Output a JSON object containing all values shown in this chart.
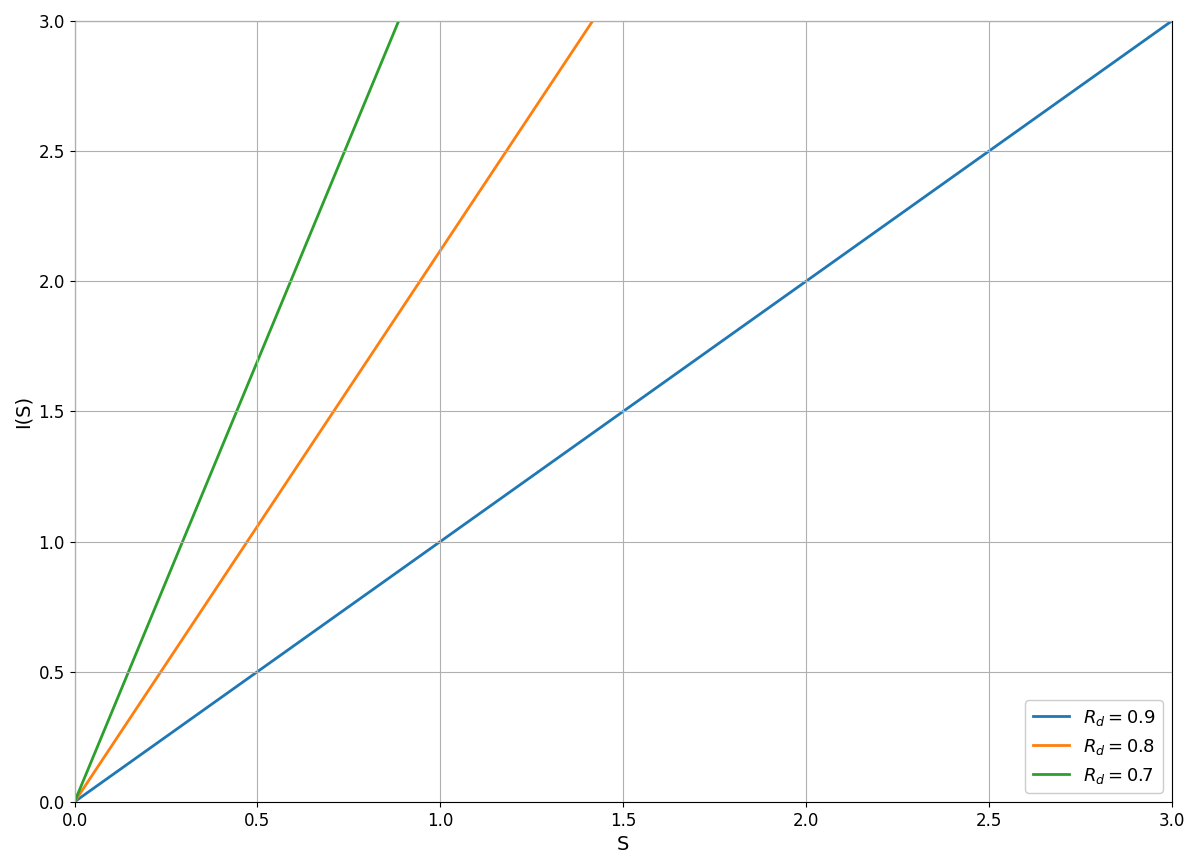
{
  "title": "",
  "xlabel": "S",
  "ylabel": "I(S)",
  "xlim": [
    0,
    3
  ],
  "ylim": [
    0,
    3
  ],
  "xticks": [
    0.0,
    0.5,
    1.0,
    1.5,
    2.0,
    2.5,
    3.0
  ],
  "yticks": [
    0.0,
    0.5,
    1.0,
    1.5,
    2.0,
    2.5,
    3.0
  ],
  "series": [
    {
      "r_d": 0.9,
      "label": "$R_d = 0.9$",
      "color": "#1f77b4"
    },
    {
      "r_d": 0.8,
      "label": "$R_d = 0.8$",
      "color": "#ff7f0e"
    },
    {
      "r_d": 0.7,
      "label": "$R_d = 0.7$",
      "color": "#2ca02c"
    }
  ],
  "legend_loc": "lower right",
  "grid": true,
  "figsize": [
    11.99,
    8.68
  ],
  "dpi": 100,
  "xlabel_fontsize": 14,
  "ylabel_fontsize": 14,
  "tick_fontsize": 12,
  "legend_fontsize": 13,
  "linewidth": 2.0,
  "grid_color": "#b0b0b0",
  "grid_linewidth": 0.8,
  "grid_linestyle": "-",
  "bg_color": "white"
}
